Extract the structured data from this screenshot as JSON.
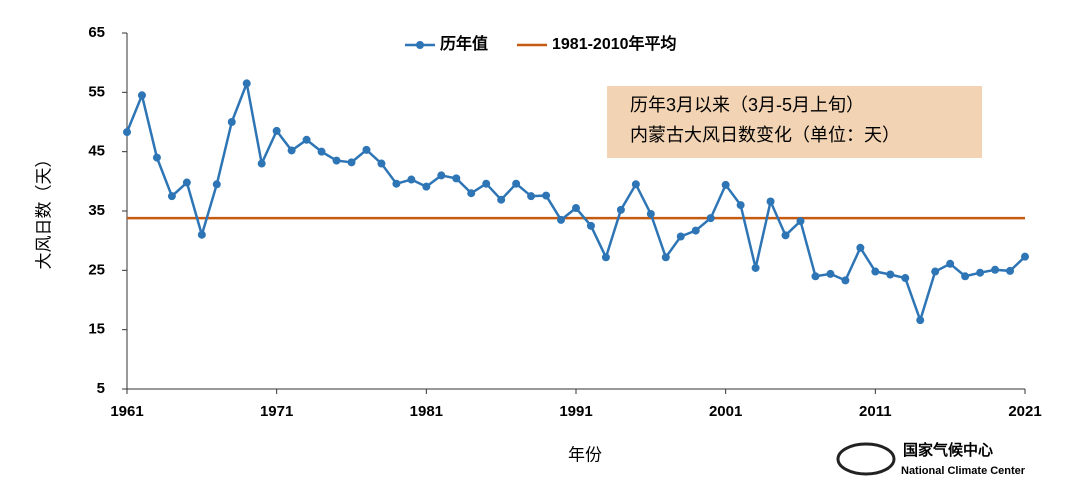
{
  "chart_data": {
    "type": "line",
    "title": [
      "历年3月以来（3月-5月上旬）",
      "内蒙古大风日数变化（单位：天）"
    ],
    "x_label": "年份",
    "y_label": "大风日数（天）",
    "x": [
      1961,
      1962,
      1963,
      1964,
      1965,
      1966,
      1967,
      1968,
      1969,
      1970,
      1971,
      1972,
      1973,
      1974,
      1975,
      1976,
      1977,
      1978,
      1979,
      1980,
      1981,
      1982,
      1983,
      1984,
      1985,
      1986,
      1987,
      1988,
      1989,
      1990,
      1991,
      1992,
      1993,
      1994,
      1995,
      1996,
      1997,
      1998,
      1999,
      2000,
      2001,
      2002,
      2003,
      2004,
      2005,
      2006,
      2007,
      2008,
      2009,
      2010,
      2011,
      2012,
      2013,
      2014,
      2015,
      2016,
      2017,
      2018,
      2019,
      2020,
      2021
    ],
    "series": [
      {
        "name": "历年值",
        "color": "#2e75b6",
        "values": [
          48.3,
          54.5,
          44,
          37.5,
          39.8,
          31,
          39.5,
          50,
          56.5,
          43,
          48.5,
          45.2,
          47,
          45,
          43.5,
          43.2,
          45.3,
          43,
          39.6,
          40.3,
          39.1,
          41,
          40.5,
          38,
          39.6,
          36.9,
          39.6,
          37.5,
          37.6,
          33.5,
          35.5,
          32.5,
          27.2,
          35.2,
          39.5,
          34.5,
          27.2,
          30.7,
          31.7,
          33.8,
          39.4,
          36,
          25.4,
          36.6,
          30.9,
          33.3,
          24,
          24.4,
          23.3,
          28.8,
          24.8,
          24.3,
          23.7,
          16.6,
          24.8,
          26.1,
          24,
          24.6,
          25.1,
          24.9,
          27.3
        ]
      }
    ],
    "average": {
      "name": "1981-2010年平均",
      "value": 33.8,
      "color": "#c55a11"
    },
    "xlim": [
      1961,
      2021
    ],
    "xticks": [
      1961,
      1971,
      1981,
      1991,
      2001,
      2011,
      2021
    ],
    "ylim": [
      5,
      65
    ],
    "yticks": [
      5,
      15,
      25,
      35,
      45,
      55,
      65
    ],
    "logo": {
      "name": "国家气候中心",
      "subtitle": "National Climate Center"
    }
  }
}
